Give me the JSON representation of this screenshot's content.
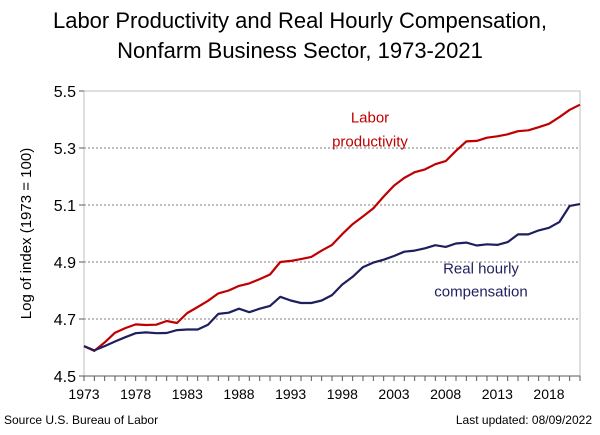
{
  "chart_data": {
    "type": "line",
    "title_line1": "Labor Productivity and Real Hourly Compensation,",
    "title_line2": "Nonfarm Business Sector, 1973-2021",
    "ylabel": "Log of index (1973 = 100)",
    "xlabel": "",
    "ylim": [
      4.5,
      5.5
    ],
    "yticks": [
      4.5,
      4.7,
      4.9,
      5.1,
      5.3,
      5.5
    ],
    "ytick_labels": [
      "4.5",
      "4.7",
      "4.9",
      "5.1",
      "5.3",
      "5.5"
    ],
    "xlim": [
      1973,
      2021
    ],
    "xticks": [
      1973,
      1978,
      1983,
      1988,
      1993,
      1998,
      2003,
      2008,
      2013,
      2018
    ],
    "xtick_labels": [
      "1973",
      "1978",
      "1983",
      "1988",
      "1993",
      "1998",
      "2003",
      "2008",
      "2013",
      "2018"
    ],
    "x": [
      1973,
      1974,
      1975,
      1976,
      1977,
      1978,
      1979,
      1980,
      1981,
      1982,
      1983,
      1984,
      1985,
      1986,
      1987,
      1988,
      1989,
      1990,
      1991,
      1992,
      1993,
      1994,
      1995,
      1996,
      1997,
      1998,
      1999,
      2000,
      2001,
      2002,
      2003,
      2004,
      2005,
      2006,
      2007,
      2008,
      2009,
      2010,
      2011,
      2012,
      2013,
      2014,
      2015,
      2016,
      2017,
      2018,
      2019,
      2020,
      2021
    ],
    "series": [
      {
        "name": "Labor productivity",
        "label_line1": "Labor",
        "label_line2": "productivity",
        "color": "#c00000",
        "values": [
          4.605,
          4.588,
          4.618,
          4.652,
          4.668,
          4.681,
          4.679,
          4.68,
          4.693,
          4.686,
          4.721,
          4.742,
          4.764,
          4.79,
          4.8,
          4.816,
          4.825,
          4.84,
          4.856,
          4.9,
          4.904,
          4.91,
          4.918,
          4.94,
          4.96,
          4.998,
          5.033,
          5.06,
          5.088,
          5.13,
          5.168,
          5.195,
          5.215,
          5.225,
          5.243,
          5.254,
          5.29,
          5.323,
          5.325,
          5.336,
          5.341,
          5.348,
          5.359,
          5.362,
          5.373,
          5.385,
          5.408,
          5.434,
          5.452
        ]
      },
      {
        "name": "Real hourly compensation",
        "label_line1": "Real hourly",
        "label_line2": "compensation",
        "color": "#1f1f5e",
        "values": [
          4.605,
          4.59,
          4.605,
          4.621,
          4.636,
          4.65,
          4.653,
          4.65,
          4.651,
          4.661,
          4.663,
          4.663,
          4.68,
          4.718,
          4.722,
          4.736,
          4.724,
          4.736,
          4.746,
          4.778,
          4.765,
          4.756,
          4.756,
          4.765,
          4.784,
          4.821,
          4.848,
          4.882,
          4.898,
          4.908,
          4.921,
          4.936,
          4.94,
          4.948,
          4.959,
          4.953,
          4.965,
          4.968,
          4.958,
          4.962,
          4.96,
          4.97,
          4.997,
          4.997,
          5.011,
          5.02,
          5.04,
          5.097,
          5.103
        ]
      }
    ]
  },
  "footer": {
    "source": "Source U.S. Bureau of Labor",
    "updated": "Last updated: 08/09/2022"
  }
}
